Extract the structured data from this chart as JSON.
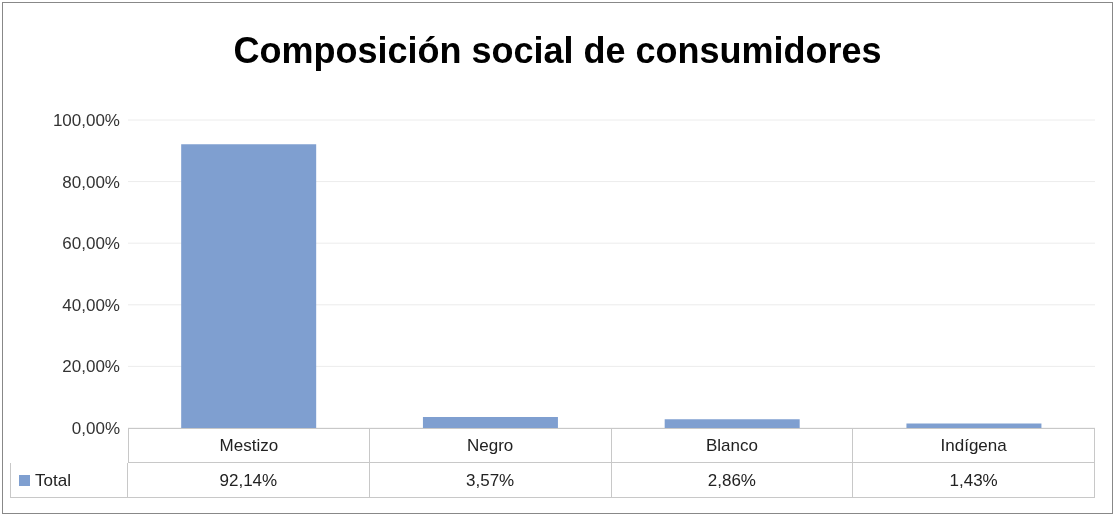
{
  "chart_data": {
    "type": "bar",
    "title": "Composición social de consumidores",
    "categories": [
      "Mestizo",
      "Negro",
      "Blanco",
      "Indígena"
    ],
    "series": [
      {
        "name": "Total",
        "color": "#7f9fd0",
        "values": [
          92.14,
          3.57,
          2.86,
          1.43
        ],
        "value_labels": [
          "92,14%",
          "3,57%",
          "2,86%",
          "1,43%"
        ]
      }
    ],
    "ylim": [
      0,
      100
    ],
    "yticks": [
      {
        "value": 0,
        "label": "0,00%"
      },
      {
        "value": 20,
        "label": "20,00%"
      },
      {
        "value": 40,
        "label": "40,00%"
      },
      {
        "value": 60,
        "label": "60,00%"
      },
      {
        "value": 80,
        "label": "80,00%"
      },
      {
        "value": 100,
        "label": "100,00%"
      }
    ],
    "grid": "y",
    "legend": "bottom"
  }
}
